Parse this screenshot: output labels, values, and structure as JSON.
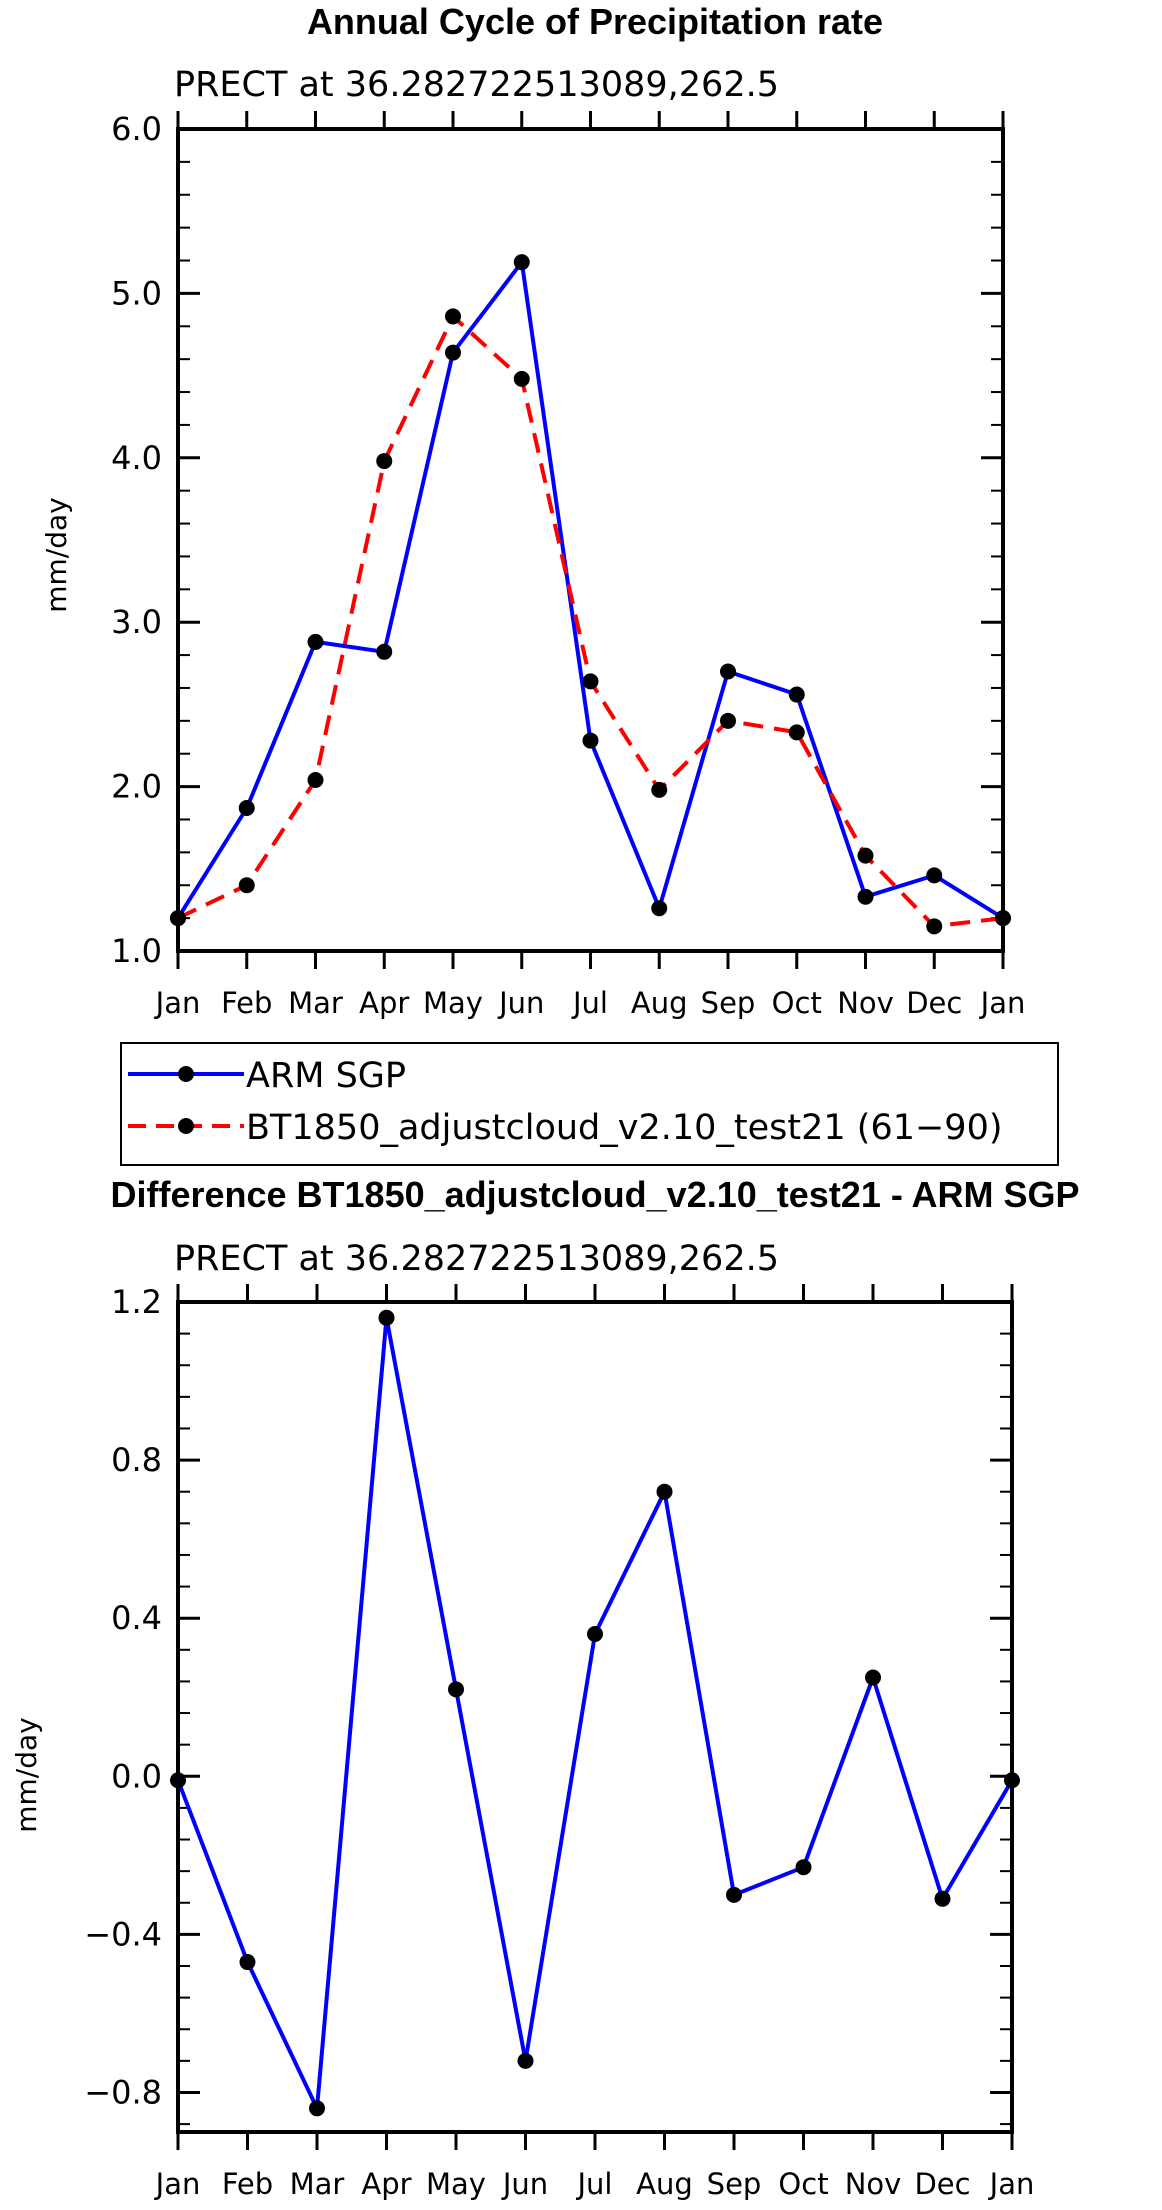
{
  "colors": {
    "arm": "#0000ff",
    "model": "#ff0000",
    "marker": "#000000",
    "axis": "#000000"
  },
  "chart_data": [
    {
      "type": "line",
      "title": "Annual Cycle of Precipitation rate",
      "subtitle": "PRECT at 36.282722513089,262.5",
      "xlabel": "",
      "ylabel": "mm/day",
      "categories": [
        "Jan",
        "Feb",
        "Mar",
        "Apr",
        "May",
        "Jun",
        "Jul",
        "Aug",
        "Sep",
        "Oct",
        "Nov",
        "Dec",
        "Jan"
      ],
      "ylim": [
        1.0,
        6.0
      ],
      "yticks": [
        "1.0",
        "2.0",
        "3.0",
        "4.0",
        "5.0",
        "6.0"
      ],
      "grid": false,
      "legend_position": "bottom",
      "series": [
        {
          "name": "ARM SGP",
          "style": "solid",
          "color": "#0000ff",
          "values": [
            1.2,
            1.87,
            2.88,
            2.82,
            4.64,
            5.19,
            2.28,
            1.26,
            2.7,
            2.56,
            1.33,
            1.46,
            1.2
          ]
        },
        {
          "name": "BT1850_adjustcloud_v2.10_test21 (61−90)",
          "style": "dashed",
          "color": "#ff0000",
          "values": [
            1.2,
            1.4,
            2.04,
            3.98,
            4.86,
            4.48,
            2.64,
            1.98,
            2.4,
            2.33,
            1.58,
            1.15,
            1.2
          ]
        }
      ]
    },
    {
      "type": "line",
      "title": "Difference BT1850_adjustcloud_v2.10_test21 - ARM SGP",
      "subtitle": "PRECT at 36.282722513089,262.5",
      "xlabel": "",
      "ylabel": "mm/day",
      "categories": [
        "Jan",
        "Feb",
        "Mar",
        "Apr",
        "May",
        "Jun",
        "Jul",
        "Aug",
        "Sep",
        "Oct",
        "Nov",
        "Dec",
        "Jan"
      ],
      "ylim": [
        -0.9,
        1.2
      ],
      "yticks": [
        "−0.8",
        "−0.4",
        "0.0",
        "0.4",
        "0.8",
        "1.2"
      ],
      "grid": false,
      "series": [
        {
          "style": "solid",
          "color": "#0000ff",
          "values": [
            -0.01,
            -0.47,
            -0.84,
            1.16,
            0.22,
            -0.72,
            0.36,
            0.72,
            -0.3,
            -0.23,
            0.25,
            -0.31,
            -0.01
          ]
        }
      ]
    }
  ]
}
